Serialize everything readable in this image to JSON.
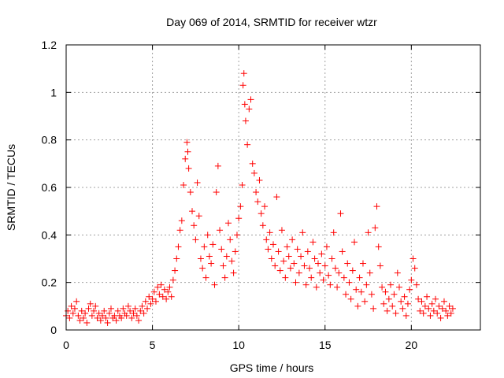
{
  "chart_data": {
    "type": "scatter",
    "title": "Day 069 of 2014, SRMTID for receiver wtzr",
    "xlabel": "GPS time / hours",
    "ylabel": "SRMTID / TECUs",
    "xlim": [
      0,
      24
    ],
    "ylim": [
      0,
      1.2
    ],
    "xticks": [
      0,
      5,
      10,
      15,
      20
    ],
    "xtick_labels": [
      "0",
      "5",
      "10",
      "15",
      "20"
    ],
    "yticks": [
      0,
      0.2,
      0.4,
      0.6,
      0.8,
      1.0,
      1.2
    ],
    "ytick_labels": [
      "0",
      "0.2",
      "0.4",
      "0.6",
      "0.8",
      "1",
      "1.2"
    ],
    "grid": true,
    "marker": "+",
    "series_color": "#ff0000",
    "series": [
      {
        "name": "SRMTID",
        "points": [
          [
            0.0,
            0.06
          ],
          [
            0.1,
            0.08
          ],
          [
            0.2,
            0.05
          ],
          [
            0.3,
            0.1
          ],
          [
            0.4,
            0.07
          ],
          [
            0.5,
            0.09
          ],
          [
            0.6,
            0.12
          ],
          [
            0.7,
            0.06
          ],
          [
            0.8,
            0.04
          ],
          [
            0.9,
            0.08
          ],
          [
            1.0,
            0.05
          ],
          [
            1.1,
            0.07
          ],
          [
            1.2,
            0.03
          ],
          [
            1.3,
            0.09
          ],
          [
            1.4,
            0.11
          ],
          [
            1.5,
            0.06
          ],
          [
            1.6,
            0.08
          ],
          [
            1.7,
            0.1
          ],
          [
            1.8,
            0.05
          ],
          [
            1.9,
            0.07
          ],
          [
            2.0,
            0.04
          ],
          [
            2.1,
            0.06
          ],
          [
            2.2,
            0.08
          ],
          [
            2.3,
            0.05
          ],
          [
            2.4,
            0.03
          ],
          [
            2.5,
            0.07
          ],
          [
            2.6,
            0.09
          ],
          [
            2.7,
            0.05
          ],
          [
            2.8,
            0.06
          ],
          [
            2.9,
            0.04
          ],
          [
            3.0,
            0.08
          ],
          [
            3.1,
            0.06
          ],
          [
            3.2,
            0.05
          ],
          [
            3.3,
            0.09
          ],
          [
            3.4,
            0.07
          ],
          [
            3.5,
            0.06
          ],
          [
            3.6,
            0.1
          ],
          [
            3.7,
            0.08
          ],
          [
            3.8,
            0.05
          ],
          [
            3.9,
            0.07
          ],
          [
            4.0,
            0.09
          ],
          [
            4.1,
            0.06
          ],
          [
            4.2,
            0.04
          ],
          [
            4.3,
            0.08
          ],
          [
            4.4,
            0.1
          ],
          [
            4.5,
            0.07
          ],
          [
            4.6,
            0.12
          ],
          [
            4.7,
            0.09
          ],
          [
            4.8,
            0.14
          ],
          [
            4.9,
            0.11
          ],
          [
            5.0,
            0.13
          ],
          [
            5.1,
            0.16
          ],
          [
            5.2,
            0.12
          ],
          [
            5.3,
            0.18
          ],
          [
            5.4,
            0.15
          ],
          [
            5.5,
            0.19
          ],
          [
            5.6,
            0.14
          ],
          [
            5.7,
            0.17
          ],
          [
            5.8,
            0.13
          ],
          [
            5.9,
            0.16
          ],
          [
            6.0,
            0.18
          ],
          [
            6.1,
            0.14
          ],
          [
            6.2,
            0.21
          ],
          [
            6.3,
            0.25
          ],
          [
            6.4,
            0.3
          ],
          [
            6.5,
            0.35
          ],
          [
            6.6,
            0.42
          ],
          [
            6.7,
            0.46
          ],
          [
            6.8,
            0.61
          ],
          [
            6.9,
            0.72
          ],
          [
            7.0,
            0.79
          ],
          [
            7.05,
            0.75
          ],
          [
            7.1,
            0.68
          ],
          [
            7.2,
            0.58
          ],
          [
            7.3,
            0.5
          ],
          [
            7.4,
            0.44
          ],
          [
            7.5,
            0.38
          ],
          [
            7.6,
            0.62
          ],
          [
            7.7,
            0.48
          ],
          [
            7.8,
            0.3
          ],
          [
            7.9,
            0.26
          ],
          [
            8.0,
            0.35
          ],
          [
            8.1,
            0.22
          ],
          [
            8.2,
            0.4
          ],
          [
            8.3,
            0.31
          ],
          [
            8.4,
            0.28
          ],
          [
            8.5,
            0.36
          ],
          [
            8.6,
            0.19
          ],
          [
            8.7,
            0.58
          ],
          [
            8.8,
            0.69
          ],
          [
            8.9,
            0.42
          ],
          [
            9.0,
            0.34
          ],
          [
            9.1,
            0.27
          ],
          [
            9.2,
            0.22
          ],
          [
            9.3,
            0.31
          ],
          [
            9.4,
            0.45
          ],
          [
            9.5,
            0.38
          ],
          [
            9.6,
            0.29
          ],
          [
            9.7,
            0.24
          ],
          [
            9.8,
            0.33
          ],
          [
            9.9,
            0.4
          ],
          [
            10.0,
            0.47
          ],
          [
            10.1,
            0.52
          ],
          [
            10.2,
            0.61
          ],
          [
            10.25,
            1.03
          ],
          [
            10.3,
            1.08
          ],
          [
            10.35,
            0.95
          ],
          [
            10.4,
            0.88
          ],
          [
            10.5,
            0.78
          ],
          [
            10.6,
            0.93
          ],
          [
            10.7,
            0.97
          ],
          [
            10.8,
            0.7
          ],
          [
            10.9,
            0.66
          ],
          [
            11.0,
            0.58
          ],
          [
            11.1,
            0.54
          ],
          [
            11.2,
            0.63
          ],
          [
            11.3,
            0.49
          ],
          [
            11.4,
            0.44
          ],
          [
            11.5,
            0.52
          ],
          [
            11.6,
            0.38
          ],
          [
            11.7,
            0.34
          ],
          [
            11.8,
            0.41
          ],
          [
            11.9,
            0.3
          ],
          [
            12.0,
            0.36
          ],
          [
            12.1,
            0.27
          ],
          [
            12.2,
            0.56
          ],
          [
            12.3,
            0.33
          ],
          [
            12.4,
            0.25
          ],
          [
            12.5,
            0.42
          ],
          [
            12.6,
            0.29
          ],
          [
            12.7,
            0.22
          ],
          [
            12.8,
            0.35
          ],
          [
            12.9,
            0.31
          ],
          [
            13.0,
            0.26
          ],
          [
            13.1,
            0.38
          ],
          [
            13.2,
            0.28
          ],
          [
            13.3,
            0.2
          ],
          [
            13.4,
            0.34
          ],
          [
            13.5,
            0.24
          ],
          [
            13.6,
            0.31
          ],
          [
            13.7,
            0.41
          ],
          [
            13.8,
            0.27
          ],
          [
            13.9,
            0.19
          ],
          [
            14.0,
            0.33
          ],
          [
            14.1,
            0.26
          ],
          [
            14.2,
            0.22
          ],
          [
            14.3,
            0.37
          ],
          [
            14.4,
            0.3
          ],
          [
            14.5,
            0.18
          ],
          [
            14.6,
            0.28
          ],
          [
            14.7,
            0.24
          ],
          [
            14.8,
            0.32
          ],
          [
            14.9,
            0.21
          ],
          [
            15.0,
            0.27
          ],
          [
            15.1,
            0.35
          ],
          [
            15.2,
            0.23
          ],
          [
            15.3,
            0.19
          ],
          [
            15.4,
            0.3
          ],
          [
            15.5,
            0.41
          ],
          [
            15.6,
            0.26
          ],
          [
            15.7,
            0.18
          ],
          [
            15.8,
            0.24
          ],
          [
            15.9,
            0.49
          ],
          [
            16.0,
            0.33
          ],
          [
            16.1,
            0.22
          ],
          [
            16.2,
            0.15
          ],
          [
            16.3,
            0.28
          ],
          [
            16.4,
            0.2
          ],
          [
            16.5,
            0.13
          ],
          [
            16.6,
            0.25
          ],
          [
            16.7,
            0.37
          ],
          [
            16.8,
            0.17
          ],
          [
            16.9,
            0.1
          ],
          [
            17.0,
            0.22
          ],
          [
            17.1,
            0.16
          ],
          [
            17.2,
            0.28
          ],
          [
            17.3,
            0.12
          ],
          [
            17.4,
            0.19
          ],
          [
            17.5,
            0.41
          ],
          [
            17.6,
            0.24
          ],
          [
            17.7,
            0.15
          ],
          [
            17.8,
            0.09
          ],
          [
            17.9,
            0.43
          ],
          [
            18.0,
            0.52
          ],
          [
            18.1,
            0.35
          ],
          [
            18.2,
            0.27
          ],
          [
            18.3,
            0.18
          ],
          [
            18.4,
            0.11
          ],
          [
            18.5,
            0.16
          ],
          [
            18.6,
            0.08
          ],
          [
            18.7,
            0.13
          ],
          [
            18.8,
            0.19
          ],
          [
            18.9,
            0.1
          ],
          [
            19.0,
            0.15
          ],
          [
            19.1,
            0.07
          ],
          [
            19.2,
            0.24
          ],
          [
            19.3,
            0.18
          ],
          [
            19.4,
            0.12
          ],
          [
            19.5,
            0.09
          ],
          [
            19.6,
            0.14
          ],
          [
            19.7,
            0.06
          ],
          [
            19.8,
            0.11
          ],
          [
            19.9,
            0.17
          ],
          [
            20.0,
            0.21
          ],
          [
            20.1,
            0.3
          ],
          [
            20.2,
            0.26
          ],
          [
            20.3,
            0.19
          ],
          [
            20.4,
            0.13
          ],
          [
            20.5,
            0.08
          ],
          [
            20.6,
            0.12
          ],
          [
            20.7,
            0.07
          ],
          [
            20.8,
            0.1
          ],
          [
            20.9,
            0.14
          ],
          [
            21.0,
            0.09
          ],
          [
            21.1,
            0.06
          ],
          [
            21.2,
            0.11
          ],
          [
            21.3,
            0.08
          ],
          [
            21.4,
            0.13
          ],
          [
            21.5,
            0.07
          ],
          [
            21.6,
            0.1
          ],
          [
            21.7,
            0.05
          ],
          [
            21.8,
            0.09
          ],
          [
            21.9,
            0.12
          ],
          [
            22.0,
            0.08
          ],
          [
            22.1,
            0.06
          ],
          [
            22.2,
            0.1
          ],
          [
            22.3,
            0.07
          ],
          [
            22.4,
            0.09
          ]
        ]
      }
    ]
  }
}
